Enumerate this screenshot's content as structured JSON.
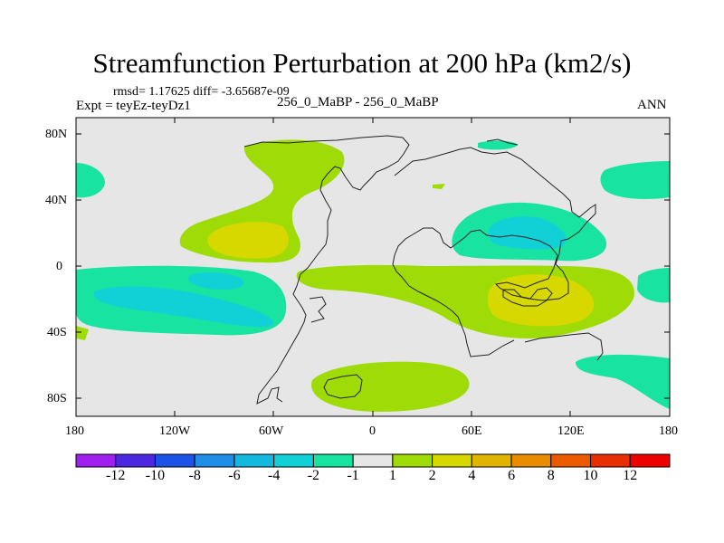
{
  "title": "Streamfunction Perturbation at 200 hPa (km2/s)",
  "subtitle": {
    "rmsd": "rmsd= 1.17625 diff= -3.65687e-09",
    "expt": "Expt = teyEz-teyDz1",
    "center": "256_0_MaBP - 256_0_MaBP",
    "right": "ANN"
  },
  "axes": {
    "y_ticks": [
      "80N",
      "40N",
      "0",
      "40S",
      "80S"
    ],
    "x_ticks": [
      "180",
      "120W",
      "60W",
      "0",
      "60E",
      "120E",
      "180"
    ]
  },
  "colorbar": {
    "labels": [
      "-12",
      "-10",
      "-8",
      "-6",
      "-4",
      "-2",
      "-1",
      "1",
      "2",
      "4",
      "6",
      "8",
      "10",
      "12"
    ],
    "colors": [
      "#a020f0",
      "#4b27e0",
      "#1c53e6",
      "#1e8ee8",
      "#13b8dd",
      "#11d1d6",
      "#18e3a0",
      "#e6e6e6",
      "#9fdc07",
      "#d6d800",
      "#e0b400",
      "#ea8c00",
      "#ec5a00",
      "#e82d00",
      "#ec0000"
    ]
  },
  "map_colors": {
    "background": "#e6e6e6",
    "green_pos": "#9fdc07",
    "yellow_pos": "#d6d800",
    "teal_neg": "#18e3a0",
    "cyan_neg": "#11d1d6"
  }
}
